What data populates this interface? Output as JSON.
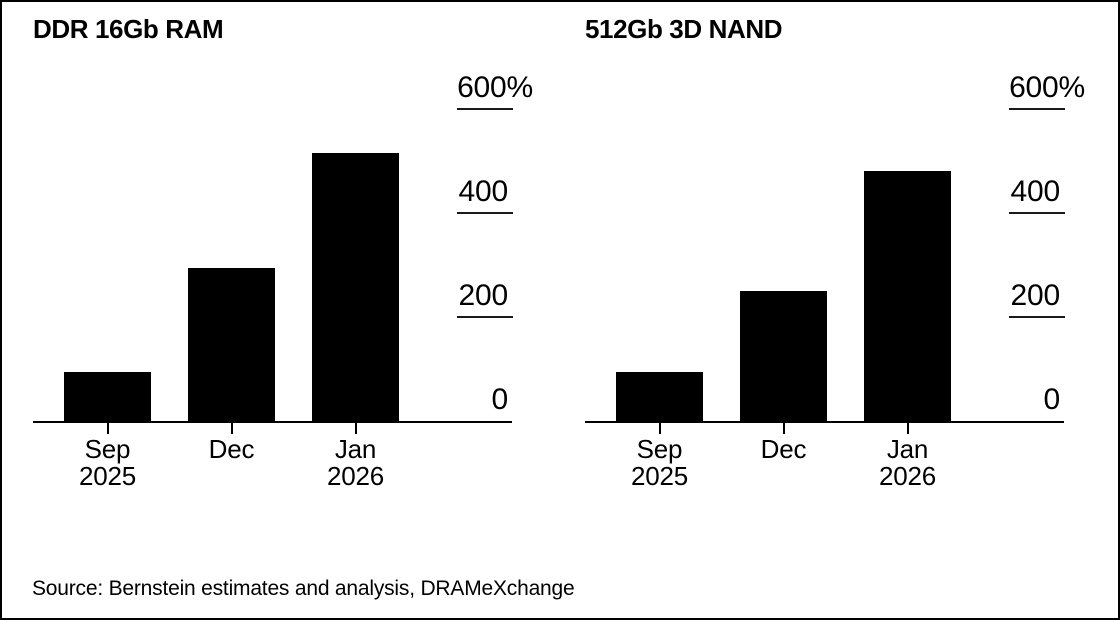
{
  "figure": {
    "source": "Source: Bernstein estimates and analysis, DRAMeXchange",
    "background_color": "#ffffff",
    "border_color": "#000000",
    "bar_color": "#000000",
    "axis_color": "#000000",
    "text_color": "#000000"
  },
  "chart_data": [
    {
      "type": "bar",
      "title": "DDR 16Gb RAM",
      "categories": [
        [
          "Sep",
          "2025"
        ],
        [
          "Dec"
        ],
        [
          "Jan",
          "2026"
        ]
      ],
      "values": [
        95,
        295,
        515
      ],
      "unit": "%",
      "xlabel": "",
      "ylabel": "",
      "ylim": [
        0,
        600
      ],
      "yticks": [
        {
          "value": 600,
          "label": "600%"
        },
        {
          "value": 400,
          "label": "400"
        },
        {
          "value": 200,
          "label": "200"
        },
        {
          "value": 0,
          "label": "0"
        }
      ],
      "grid": false,
      "legend": null,
      "axis_side": "right"
    },
    {
      "type": "bar",
      "title": "512Gb 3D NAND",
      "categories": [
        [
          "Sep",
          "2025"
        ],
        [
          "Dec"
        ],
        [
          "Jan",
          "2026"
        ]
      ],
      "values": [
        95,
        250,
        480
      ],
      "unit": "%",
      "xlabel": "",
      "ylabel": "",
      "ylim": [
        0,
        600
      ],
      "yticks": [
        {
          "value": 600,
          "label": "600%"
        },
        {
          "value": 400,
          "label": "400"
        },
        {
          "value": 200,
          "label": "200"
        },
        {
          "value": 0,
          "label": "0"
        }
      ],
      "grid": false,
      "legend": null,
      "axis_side": "right"
    }
  ]
}
